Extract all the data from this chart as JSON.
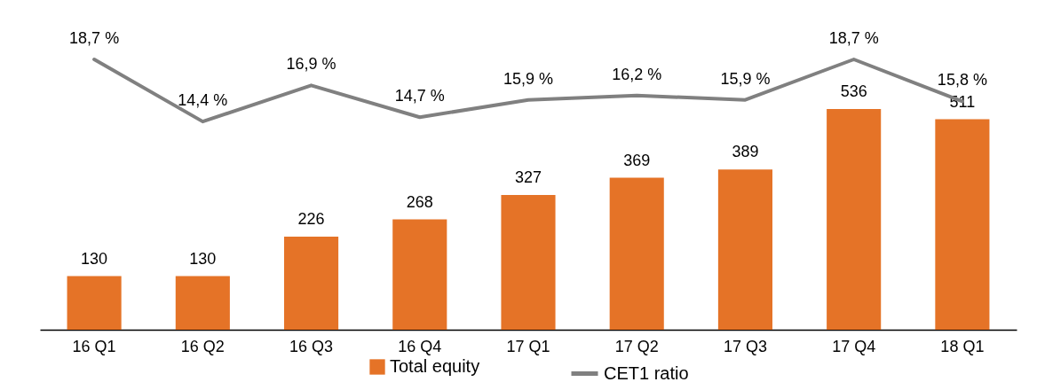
{
  "chart_data": {
    "type": "bar",
    "categories": [
      "16 Q1",
      "16 Q2",
      "16 Q3",
      "16 Q4",
      "17 Q1",
      "17 Q2",
      "17 Q3",
      "17 Q4",
      "18 Q1"
    ],
    "series": [
      {
        "name": "Total equity",
        "color": "#e57327",
        "values": [
          130,
          130,
          226,
          268,
          327,
          369,
          389,
          536,
          511
        ]
      },
      {
        "name": "CET1 ratio",
        "type": "line",
        "axis": "y2",
        "color": "#808080",
        "values": [
          18.7,
          14.4,
          16.9,
          14.7,
          15.9,
          16.2,
          15.9,
          18.7,
          15.8
        ],
        "value_labels": [
          "18,7 %",
          "14,4 %",
          "16,9 %",
          "14,7 %",
          "15,9 %",
          "16,2 %",
          "15,9 %",
          "18,7 %",
          "15,8 %"
        ]
      }
    ],
    "data_labels": true,
    "legend": "bottom",
    "grid": false,
    "tick_labels": "x"
  }
}
